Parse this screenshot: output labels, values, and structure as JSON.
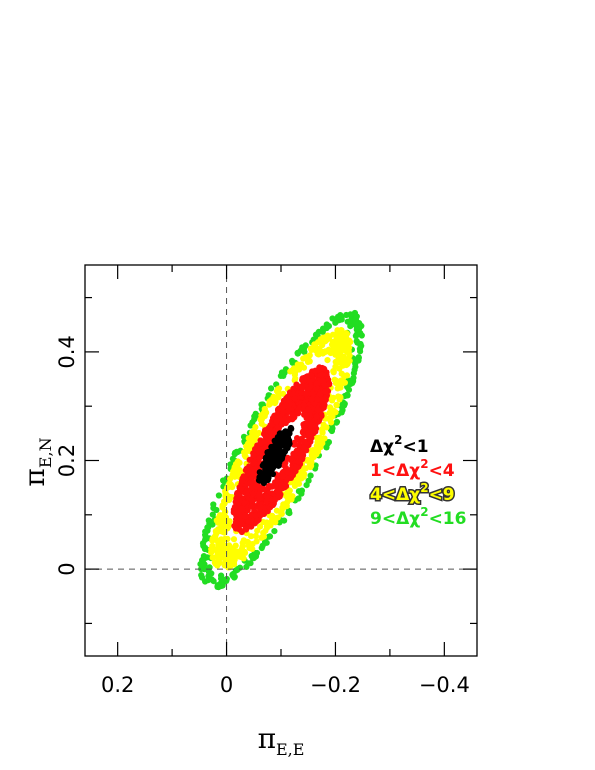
{
  "chart_data": {
    "type": "scatter",
    "title": "",
    "xlabel": {
      "symbol": "π",
      "subscript": "E,E"
    },
    "ylabel": {
      "symbol": "π",
      "subscript": "E,N"
    },
    "xlim": [
      0.26,
      -0.46
    ],
    "ylim": [
      -0.16,
      0.56
    ],
    "x_reversed": true,
    "x_ticks": [
      {
        "value": 0.2,
        "label": "0.2"
      },
      {
        "value": 0.0,
        "label": "0"
      },
      {
        "value": -0.2,
        "label": "−0.2"
      },
      {
        "value": -0.4,
        "label": "−0.4"
      }
    ],
    "x_minor_step": 0.1,
    "y_ticks": [
      {
        "value": 0.0,
        "label": "0"
      },
      {
        "value": 0.2,
        "label": "0.2"
      },
      {
        "value": 0.4,
        "label": "0.4"
      }
    ],
    "y_minor_step": 0.1,
    "reference_lines": [
      {
        "axis": "x",
        "value": 0,
        "style": "dashed"
      },
      {
        "axis": "y",
        "value": 0,
        "style": "dashed"
      }
    ],
    "grid": false,
    "legend_position": "right-middle",
    "series": [
      {
        "name_parts": [
          "9<Δχ",
          "2",
          "<16"
        ],
        "color": "#22dd22",
        "center": [
          -0.1,
          0.22
        ],
        "major_sigma": 0.11,
        "minor_sigma": 0.028,
        "angle_deg": 62,
        "count": 260,
        "r_min": 2.2,
        "r_max": 2.6
      },
      {
        "name_parts": [
          "4<Δχ",
          "2",
          "<9"
        ],
        "color": "#ffff00",
        "outline": "#333333",
        "center": [
          -0.1,
          0.22
        ],
        "major_sigma": 0.11,
        "minor_sigma": 0.028,
        "angle_deg": 62,
        "count": 520,
        "r_min": 1.55,
        "r_max": 2.25
      },
      {
        "name_parts": [
          "1<Δχ",
          "2",
          "<4"
        ],
        "color": "#ff1010",
        "center": [
          -0.1,
          0.22
        ],
        "major_sigma": 0.11,
        "minor_sigma": 0.028,
        "angle_deg": 62,
        "count": 900,
        "r_min": 0.55,
        "r_max": 1.55
      },
      {
        "name_parts": [
          "Δχ",
          "2",
          "<1"
        ],
        "color": "#000000",
        "center": [
          -0.09,
          0.21
        ],
        "major_sigma": 0.11,
        "minor_sigma": 0.028,
        "angle_deg": 62,
        "count": 130,
        "r_min": 0.0,
        "r_max": 0.55
      }
    ]
  }
}
